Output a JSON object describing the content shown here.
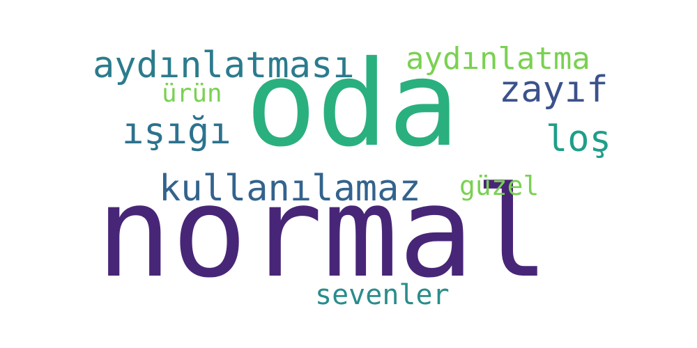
{
  "words": [
    {
      "text": "normal",
      "color": "#482677"
    },
    {
      "text": "oda",
      "color": "#2ab07f"
    },
    {
      "text": "aydınlatması",
      "color": "#2b7b8d"
    },
    {
      "text": "aydınlatma",
      "color": "#7ad151"
    },
    {
      "text": "zayıf",
      "color": "#3b528b"
    },
    {
      "text": "ürün",
      "color": "#7ad151"
    },
    {
      "text": "ışığı",
      "color": "#2c728e"
    },
    {
      "text": "loş",
      "color": "#1f9e89"
    },
    {
      "text": "kullanılamaz",
      "color": "#33638d"
    },
    {
      "text": "güzel",
      "color": "#7ad151"
    },
    {
      "text": "sevenler",
      "color": "#2a8c8c"
    }
  ]
}
